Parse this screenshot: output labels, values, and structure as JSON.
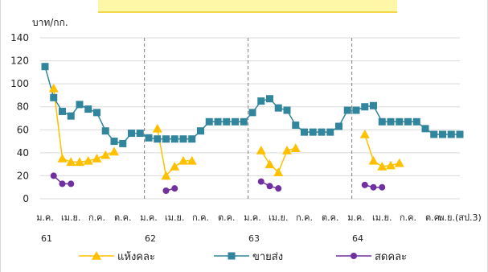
{
  "chart_data": {
    "type": "line",
    "ylabel": "บาท/กก.",
    "ylim": [
      0,
      140
    ],
    "yticks": [
      0,
      20,
      40,
      60,
      80,
      100,
      120,
      140
    ],
    "x_tick_labels": [
      "ม.ค.",
      "เม.ย.",
      "ก.ค.",
      "ต.ค.",
      "ม.ค.",
      "เม.ย.",
      "ก.ค.",
      "ต.ค.",
      "ม.ค.",
      "เม.ย.",
      "ก.ค.",
      "ต.ค.",
      "ม.ค.",
      "เม.ย.",
      "ก.ค.",
      "ต.ค.",
      "พ.ย.(สป.3)"
    ],
    "year_labels": [
      "61",
      "62",
      "63",
      "64"
    ],
    "grid": "horizontal",
    "legend_position": "bottom",
    "series": [
      {
        "name": "แห้งคละ",
        "color": "#ffc000",
        "marker": "triangle",
        "points": [
          [
            1,
            96
          ],
          [
            2,
            35
          ],
          [
            3,
            32
          ],
          [
            4,
            32
          ],
          [
            5,
            33
          ],
          [
            6,
            35
          ],
          [
            7,
            38
          ],
          [
            8,
            41
          ],
          [
            13,
            61
          ],
          [
            14,
            20
          ],
          [
            15,
            28
          ],
          [
            16,
            33
          ],
          [
            17,
            33
          ],
          [
            25,
            42
          ],
          [
            26,
            30
          ],
          [
            27,
            23
          ],
          [
            28,
            42
          ],
          [
            29,
            44
          ],
          [
            37,
            56
          ],
          [
            38,
            33
          ],
          [
            39,
            28
          ],
          [
            40,
            29
          ],
          [
            41,
            31
          ]
        ]
      },
      {
        "name": "ขายส่ง",
        "color": "#31859c",
        "marker": "square",
        "points": [
          [
            0,
            115
          ],
          [
            1,
            88
          ],
          [
            2,
            76
          ],
          [
            3,
            72
          ],
          [
            4,
            82
          ],
          [
            5,
            78
          ],
          [
            6,
            75
          ],
          [
            7,
            59
          ],
          [
            8,
            50
          ],
          [
            9,
            48
          ],
          [
            10,
            57
          ],
          [
            11,
            57
          ],
          [
            12,
            53
          ],
          [
            13,
            52
          ],
          [
            14,
            52
          ],
          [
            15,
            52
          ],
          [
            16,
            52
          ],
          [
            17,
            52
          ],
          [
            18,
            59
          ],
          [
            19,
            67
          ],
          [
            20,
            67
          ],
          [
            21,
            67
          ],
          [
            22,
            67
          ],
          [
            23,
            67
          ],
          [
            24,
            75
          ],
          [
            25,
            85
          ],
          [
            26,
            87
          ],
          [
            27,
            79
          ],
          [
            28,
            77
          ],
          [
            29,
            64
          ],
          [
            30,
            58
          ],
          [
            31,
            58
          ],
          [
            32,
            58
          ],
          [
            33,
            58
          ],
          [
            34,
            63
          ],
          [
            35,
            77
          ],
          [
            36,
            77
          ],
          [
            37,
            80
          ],
          [
            38,
            81
          ],
          [
            39,
            67
          ],
          [
            40,
            67
          ],
          [
            41,
            67
          ],
          [
            42,
            67
          ],
          [
            43,
            67
          ],
          [
            44,
            61
          ],
          [
            45,
            56
          ],
          [
            46,
            56
          ],
          [
            47,
            56
          ],
          [
            48,
            56
          ]
        ]
      },
      {
        "name": "สดคละ",
        "color": "#7030a0",
        "marker": "circle",
        "points": [
          [
            1,
            20
          ],
          [
            2,
            13
          ],
          [
            3,
            13
          ],
          [
            14,
            7
          ],
          [
            15,
            9
          ],
          [
            25,
            15
          ],
          [
            26,
            11
          ],
          [
            27,
            9
          ],
          [
            37,
            12
          ],
          [
            38,
            10
          ],
          [
            39,
            10
          ]
        ]
      }
    ]
  }
}
